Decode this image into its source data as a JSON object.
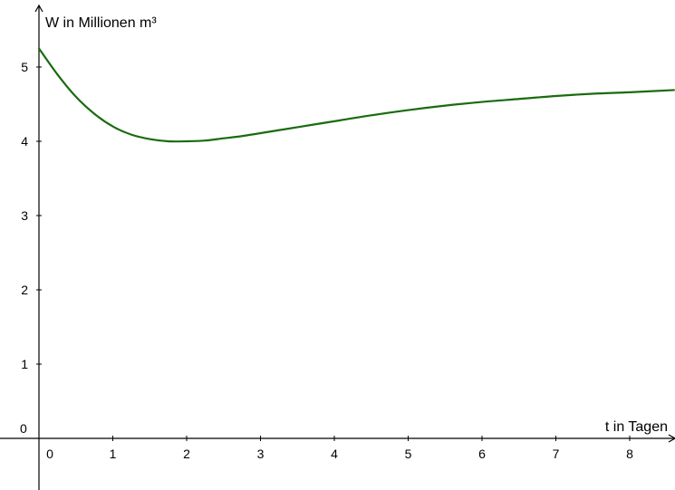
{
  "chart_data": {
    "type": "line",
    "title": "",
    "xlabel": "t in Tagen",
    "ylabel": "W in Millionen m³",
    "origin_label": "0",
    "xlim": [
      -0.2,
      8.6
    ],
    "ylim": [
      -0.8,
      5.6
    ],
    "x_ticks": [
      0,
      1,
      2,
      3,
      4,
      5,
      6,
      7,
      8
    ],
    "x_tick_labels": [
      "0",
      "1",
      "2",
      "3",
      "4",
      "5",
      "6",
      "7",
      "8"
    ],
    "y_ticks": [
      1,
      2,
      3,
      4,
      5
    ],
    "y_tick_labels": [
      "1",
      "2",
      "3",
      "4",
      "5"
    ],
    "grid": false,
    "legend": "none",
    "colors": {
      "line": "#1a6b10",
      "axis": "#000000"
    },
    "series": [
      {
        "x": [
          0,
          0.25,
          0.5,
          0.75,
          1,
          1.25,
          1.5,
          1.75,
          2,
          2.25,
          2.5,
          2.75,
          3,
          3.5,
          4,
          4.5,
          5,
          5.5,
          6,
          6.5,
          7,
          7.5,
          8,
          8.6
        ],
        "y": [
          5.25,
          4.9,
          4.6,
          4.37,
          4.2,
          4.09,
          4.03,
          4.0,
          4.0,
          4.01,
          4.04,
          4.07,
          4.11,
          4.19,
          4.27,
          4.35,
          4.42,
          4.48,
          4.53,
          4.57,
          4.61,
          4.64,
          4.66,
          4.69
        ]
      }
    ]
  }
}
